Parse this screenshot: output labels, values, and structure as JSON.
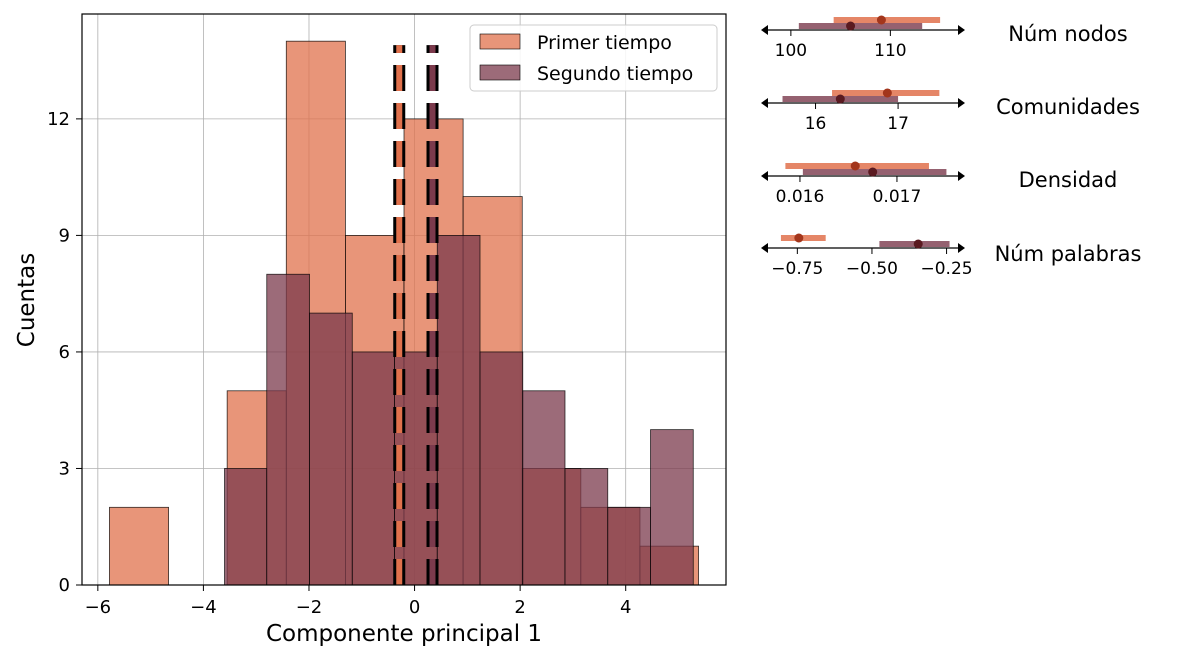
{
  "chart_data": [
    {
      "type": "histogram",
      "xlabel": "Componente principal 1",
      "ylabel": "Cuentas",
      "xlim": [
        -6.3,
        5.9
      ],
      "ylim": [
        0,
        14.7
      ],
      "xticks": [
        -6,
        -4,
        -2,
        0,
        2,
        4
      ],
      "xtick_labels": [
        "−6",
        "−4",
        "−2",
        "0",
        "2",
        "4"
      ],
      "yticks": [
        0,
        3,
        6,
        9,
        12
      ],
      "ytick_labels": [
        "0",
        "3",
        "6",
        "9",
        "12"
      ],
      "grid": true,
      "legend_position": "top-right",
      "series": [
        {
          "name": "Primer tiempo",
          "color": "#e0714c",
          "bins": [
            {
              "x0": -5.78,
              "x1": -4.66,
              "count": 2
            },
            {
              "x0": -4.66,
              "x1": -3.55,
              "count": 0
            },
            {
              "x0": -3.55,
              "x1": -2.43,
              "count": 5
            },
            {
              "x0": -2.43,
              "x1": -1.31,
              "count": 14
            },
            {
              "x0": -1.31,
              "x1": -0.2,
              "count": 9
            },
            {
              "x0": -0.2,
              "x1": 0.92,
              "count": 12
            },
            {
              "x0": 0.92,
              "x1": 2.04,
              "count": 10
            },
            {
              "x0": 2.04,
              "x1": 3.15,
              "count": 3
            },
            {
              "x0": 3.15,
              "x1": 4.27,
              "count": 2
            },
            {
              "x0": 4.27,
              "x1": 5.38,
              "count": 1
            }
          ],
          "mean": -0.29
        },
        {
          "name": "Segundo tiempo",
          "color": "#7b3a4c",
          "bins": [
            {
              "x0": -3.6,
              "x1": -2.8,
              "count": 3
            },
            {
              "x0": -2.8,
              "x1": -1.99,
              "count": 8
            },
            {
              "x0": -1.99,
              "x1": -1.18,
              "count": 7
            },
            {
              "x0": -1.18,
              "x1": -0.38,
              "count": 6
            },
            {
              "x0": -0.38,
              "x1": 0.43,
              "count": 6
            },
            {
              "x0": 0.43,
              "x1": 1.24,
              "count": 9
            },
            {
              "x0": 1.24,
              "x1": 2.05,
              "count": 6
            },
            {
              "x0": 2.05,
              "x1": 2.85,
              "count": 5
            },
            {
              "x0": 2.85,
              "x1": 3.66,
              "count": 3
            },
            {
              "x0": 3.66,
              "x1": 4.47,
              "count": 2
            },
            {
              "x0": 4.47,
              "x1": 5.28,
              "count": 4
            }
          ],
          "mean": 0.34
        }
      ]
    },
    {
      "type": "dot-interval",
      "panels": [
        {
          "label": "Núm nodos",
          "xlim": [
            97.5,
            117
          ],
          "ticks": [
            100,
            110
          ],
          "tick_labels": [
            "100",
            "110"
          ],
          "primer": {
            "low": 104.3,
            "high": 115.0,
            "mean": 109.1
          },
          "segundo": {
            "low": 100.8,
            "high": 113.2,
            "mean": 106.0
          }
        },
        {
          "label": "Comunidades",
          "xlim": [
            15.4,
            17.75
          ],
          "ticks": [
            16,
            17
          ],
          "tick_labels": [
            "16",
            "17"
          ],
          "primer": {
            "low": 16.2,
            "high": 17.5,
            "mean": 16.87
          },
          "segundo": {
            "low": 15.6,
            "high": 17.0,
            "mean": 16.3
          }
        },
        {
          "label": "Densidad",
          "xlim": [
            0.01565,
            0.01765
          ],
          "ticks": [
            0.016,
            0.017
          ],
          "tick_labels": [
            "0.016",
            "0.017"
          ],
          "primer": {
            "low": 0.01585,
            "high": 0.01733,
            "mean": 0.01657
          },
          "segundo": {
            "low": 0.01603,
            "high": 0.01751,
            "mean": 0.01675
          }
        },
        {
          "label": "Núm palabras",
          "xlim": [
            -0.855,
            -0.205
          ],
          "ticks": [
            -0.75,
            -0.5,
            -0.25
          ],
          "tick_labels": [
            "−0.75",
            "−0.50",
            "−0.25"
          ],
          "primer": {
            "low": -0.805,
            "high": -0.655,
            "mean": -0.745
          },
          "segundo": {
            "low": -0.475,
            "high": -0.24,
            "mean": -0.345
          }
        }
      ]
    }
  ]
}
